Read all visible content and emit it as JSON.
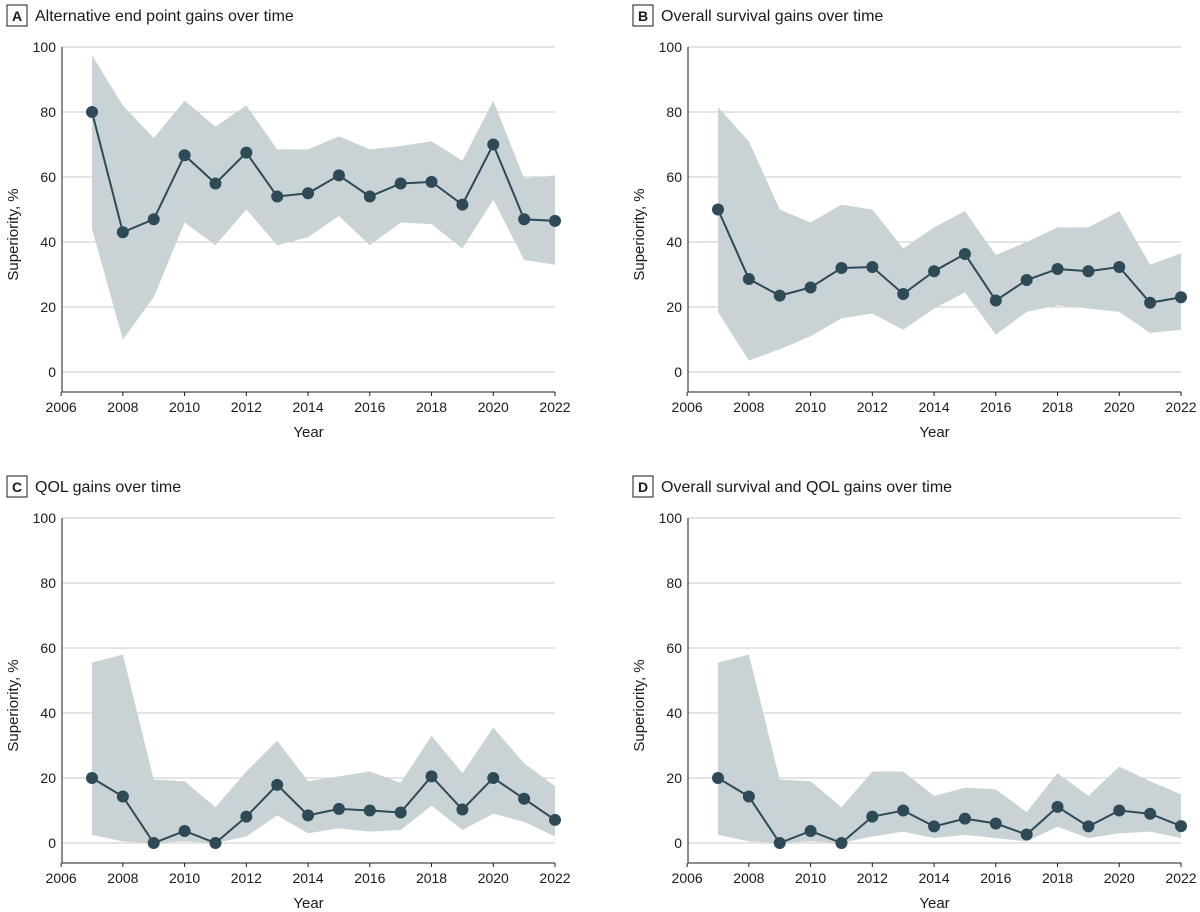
{
  "colors": {
    "band": "#c9d3d6",
    "line": "#2d4a56",
    "point": "#2d4a56"
  },
  "chart_data": [
    {
      "id": "A",
      "type": "line",
      "title": "Alternative end point gains over time",
      "xlabel": "Year",
      "ylabel": "Superiority, %",
      "xlim": [
        2006,
        2022
      ],
      "ylim": [
        0,
        100
      ],
      "xticks": [
        2006,
        2008,
        2010,
        2012,
        2014,
        2016,
        2018,
        2020,
        2022
      ],
      "yticks": [
        0,
        20,
        40,
        60,
        80,
        100
      ],
      "x": [
        2007,
        2008,
        2009,
        2010,
        2011,
        2012,
        2013,
        2014,
        2015,
        2016,
        2017,
        2018,
        2019,
        2020,
        2021,
        2022
      ],
      "series": [
        {
          "name": "Superiority",
          "values": [
            80,
            43,
            47,
            66.7,
            58,
            67.5,
            54,
            55,
            60.5,
            54,
            58,
            58.5,
            51.5,
            70,
            47,
            46.5
          ],
          "ci_lower": [
            44,
            10,
            23,
            46,
            39,
            50,
            39,
            41.5,
            48,
            39,
            46,
            45.5,
            38,
            53,
            34.5,
            33
          ],
          "ci_upper": [
            97.5,
            82,
            72,
            83.5,
            75.5,
            82,
            68.5,
            68.5,
            72.5,
            68.5,
            69.5,
            71,
            65,
            83.5,
            59.5,
            60.5
          ]
        }
      ]
    },
    {
      "id": "B",
      "type": "line",
      "title": "Overall survival gains over time",
      "xlabel": "Year",
      "ylabel": "Superiority, %",
      "xlim": [
        2006,
        2022
      ],
      "ylim": [
        0,
        100
      ],
      "xticks": [
        2006,
        2008,
        2010,
        2012,
        2014,
        2016,
        2018,
        2020,
        2022
      ],
      "yticks": [
        0,
        20,
        40,
        60,
        80,
        100
      ],
      "x": [
        2007,
        2008,
        2009,
        2010,
        2011,
        2012,
        2013,
        2014,
        2015,
        2016,
        2017,
        2018,
        2019,
        2020,
        2021,
        2022
      ],
      "series": [
        {
          "name": "Superiority",
          "values": [
            50,
            28.6,
            23.5,
            26,
            32,
            32.3,
            24,
            31,
            36.3,
            22,
            28.3,
            31.7,
            31,
            32.3,
            21.3,
            23
          ],
          "ci_lower": [
            18.5,
            3.5,
            7,
            11,
            16.5,
            18,
            13,
            19.5,
            24.5,
            11.5,
            18.5,
            20.5,
            19.5,
            18.5,
            12,
            13
          ],
          "ci_upper": [
            81.5,
            71,
            50,
            46,
            51.5,
            50,
            38,
            44.5,
            49.5,
            36,
            40,
            44.5,
            44.5,
            49.5,
            33,
            36.5
          ]
        }
      ]
    },
    {
      "id": "C",
      "type": "line",
      "title": "QOL gains over time",
      "xlabel": "Year",
      "ylabel": "Superiority, %",
      "xlim": [
        2006,
        2022
      ],
      "ylim": [
        0,
        100
      ],
      "xticks": [
        2006,
        2008,
        2010,
        2012,
        2014,
        2016,
        2018,
        2020,
        2022
      ],
      "yticks": [
        0,
        20,
        40,
        60,
        80,
        100
      ],
      "x": [
        2007,
        2008,
        2009,
        2010,
        2011,
        2012,
        2013,
        2014,
        2015,
        2016,
        2017,
        2018,
        2019,
        2020,
        2021,
        2022
      ],
      "series": [
        {
          "name": "Superiority",
          "values": [
            20,
            14.3,
            0,
            3.7,
            0,
            8.1,
            17.9,
            8.5,
            10.5,
            10,
            9.4,
            20.5,
            10.3,
            20,
            13.6,
            7.1
          ],
          "ci_lower": [
            2.5,
            0.5,
            0,
            0.5,
            0,
            2,
            8.5,
            3,
            4.5,
            3.5,
            4,
            11.5,
            4,
            9,
            6.5,
            2
          ],
          "ci_upper": [
            55.5,
            58,
            19.5,
            19,
            11,
            22,
            31.5,
            19,
            20.5,
            22,
            18.5,
            33,
            21.5,
            35.5,
            24.5,
            17.5
          ]
        }
      ]
    },
    {
      "id": "D",
      "type": "line",
      "title": "Overall survival and QOL gains over time",
      "xlabel": "Year",
      "ylabel": "Superiority, %",
      "xlim": [
        2006,
        2022
      ],
      "ylim": [
        0,
        100
      ],
      "xticks": [
        2006,
        2008,
        2010,
        2012,
        2014,
        2016,
        2018,
        2020,
        2022
      ],
      "yticks": [
        0,
        20,
        40,
        60,
        80,
        100
      ],
      "x": [
        2007,
        2008,
        2009,
        2010,
        2011,
        2012,
        2013,
        2014,
        2015,
        2016,
        2017,
        2018,
        2019,
        2020,
        2021,
        2022
      ],
      "series": [
        {
          "name": "Superiority",
          "values": [
            20,
            14.3,
            0,
            3.7,
            0,
            8.1,
            10,
            5.1,
            7.5,
            6,
            2.6,
            11.1,
            5.1,
            10,
            9,
            5.2
          ],
          "ci_lower": [
            2.5,
            0.5,
            0,
            0.5,
            0,
            2,
            3.5,
            1.5,
            2.5,
            1.5,
            0.5,
            5,
            1.5,
            3,
            3.5,
            1.5
          ],
          "ci_upper": [
            55.5,
            58,
            19.5,
            19,
            11,
            22,
            22,
            14.5,
            17,
            16.5,
            9.5,
            21.5,
            14.5,
            23.5,
            19,
            15
          ]
        }
      ]
    }
  ]
}
